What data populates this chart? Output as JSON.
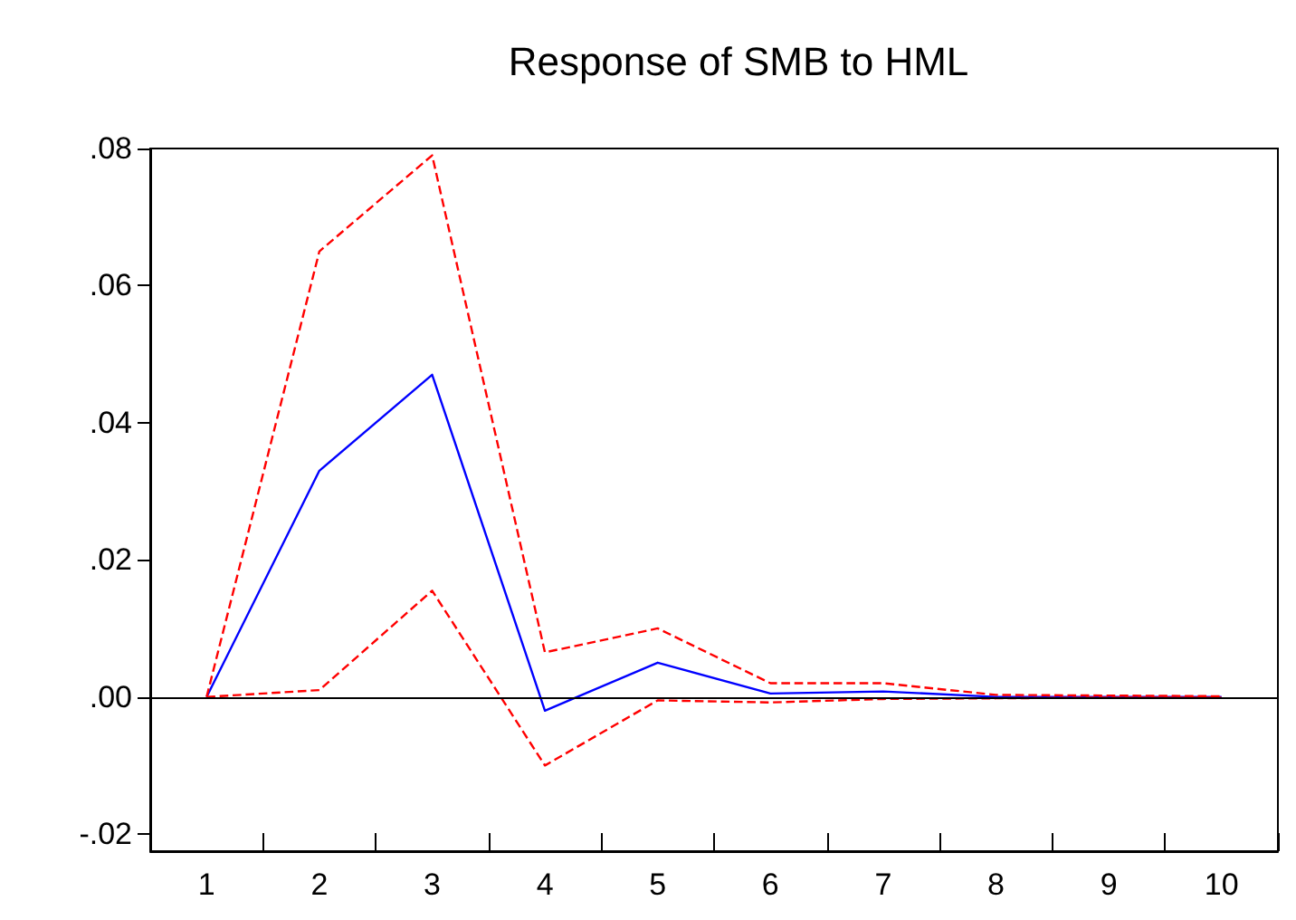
{
  "chart_data": {
    "type": "line",
    "title": "Response of SMB to HML",
    "categories": [
      "1",
      "2",
      "3",
      "4",
      "5",
      "6",
      "7",
      "8",
      "9",
      "10"
    ],
    "series": [
      {
        "color": "#0000ff",
        "line_style": "solid",
        "values": [
          0,
          0.033,
          0.047,
          -0.002,
          0.005,
          0.0005,
          0.0008,
          0,
          0,
          0
        ]
      },
      {
        "color": "#ff0000",
        "line_style": "dashed",
        "values": [
          0,
          0.065,
          0.079,
          0.0065,
          0.01,
          0.002,
          0.002,
          0.0003,
          0.0002,
          0.0001
        ]
      },
      {
        "color": "#ff0000",
        "line_style": "dashed",
        "values": [
          0,
          0.001,
          0.0155,
          -0.01,
          -0.0005,
          -0.0008,
          -0.0003,
          -0.0002,
          -0.0001,
          -0.0001
        ]
      }
    ],
    "ylim": [
      -0.0225,
      0.08
    ],
    "yticks": [
      {
        "value": -0.02,
        "label": "-.02"
      },
      {
        "value": 0,
        "label": ".00"
      },
      {
        "value": 0.02,
        "label": ".02"
      },
      {
        "value": 0.04,
        "label": ".04"
      },
      {
        "value": 0.06,
        "label": ".06"
      },
      {
        "value": 0.08,
        "label": ".08"
      }
    ],
    "ref_lines": [
      {
        "axis": "y",
        "value": 0,
        "color": "#000000"
      }
    ],
    "grid": false,
    "marker": "none"
  }
}
